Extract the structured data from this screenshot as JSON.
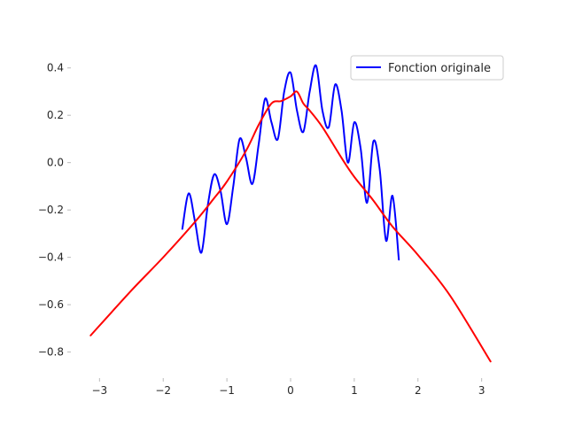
{
  "chart_data": {
    "type": "line",
    "title": "",
    "xlabel": "",
    "ylabel": "",
    "xlim": [
      -3.45,
      3.45
    ],
    "ylim": [
      -0.91,
      0.47
    ],
    "xticks": [
      -3,
      -2,
      -1,
      0,
      1,
      2,
      3
    ],
    "xtick_labels": [
      "−3",
      "−2",
      "−1",
      "0",
      "1",
      "2",
      "3"
    ],
    "yticks": [
      0.4,
      0.2,
      0.0,
      -0.2,
      -0.4,
      -0.6,
      -0.8
    ],
    "ytick_labels": [
      "0.4",
      "0.2",
      "0.0",
      "−0.2",
      "−0.4",
      "−0.6",
      "−0.8"
    ],
    "grid": false,
    "legend_position": "top-right",
    "series": [
      {
        "name": "Fonction originale",
        "color": "#0000ff",
        "x": [
          -1.7,
          -1.6,
          -1.5,
          -1.4,
          -1.3,
          -1.2,
          -1.1,
          -1.0,
          -0.9,
          -0.8,
          -0.7,
          -0.6,
          -0.5,
          -0.4,
          -0.3,
          -0.2,
          -0.1,
          0.0,
          0.1,
          0.2,
          0.3,
          0.4,
          0.5,
          0.6,
          0.7,
          0.8,
          0.9,
          1.0,
          1.1,
          1.2,
          1.3,
          1.4,
          1.5,
          1.6,
          1.7
        ],
        "y": [
          -0.28,
          -0.13,
          -0.25,
          -0.38,
          -0.18,
          -0.05,
          -0.12,
          -0.26,
          -0.1,
          0.1,
          0.02,
          -0.09,
          0.08,
          0.27,
          0.17,
          0.1,
          0.3,
          0.38,
          0.22,
          0.13,
          0.3,
          0.41,
          0.22,
          0.15,
          0.33,
          0.22,
          0.0,
          0.17,
          0.06,
          -0.17,
          0.09,
          -0.03,
          -0.33,
          -0.14,
          -0.41
        ]
      },
      {
        "name": "",
        "color": "#ff0000",
        "x": [
          -3.14,
          -2.5,
          -2.0,
          -1.5,
          -1.2,
          -1.0,
          -0.7,
          -0.5,
          -0.3,
          -0.15,
          0.0,
          0.1,
          0.2,
          0.3,
          0.5,
          0.8,
          1.0,
          1.3,
          1.6,
          2.0,
          2.5,
          3.14
        ],
        "y": [
          -0.73,
          -0.54,
          -0.4,
          -0.25,
          -0.15,
          -0.08,
          0.05,
          0.16,
          0.25,
          0.26,
          0.28,
          0.3,
          0.25,
          0.22,
          0.15,
          0.02,
          -0.06,
          -0.16,
          -0.27,
          -0.39,
          -0.56,
          -0.84
        ]
      }
    ]
  }
}
